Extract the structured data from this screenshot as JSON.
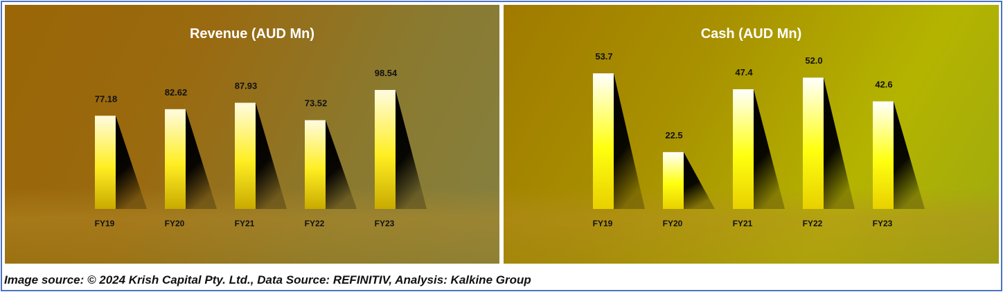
{
  "chart_data": [
    {
      "type": "bar",
      "title": "Revenue (AUD Mn)",
      "categories": [
        "FY19",
        "FY20",
        "FY21",
        "FY22",
        "FY23"
      ],
      "values": [
        77.18,
        82.62,
        87.93,
        73.52,
        98.54
      ],
      "value_labels": [
        "77.18",
        "82.62",
        "87.93",
        "73.52",
        "98.54"
      ],
      "ylim": [
        0,
        110
      ],
      "grid": false,
      "colors": {
        "bar_top": "#fffbe0",
        "bar_mid": "#ffee22",
        "bar_bottom": "#c8aa00",
        "shadow": "#000000",
        "background": "#9a6a10"
      }
    },
    {
      "type": "bar",
      "title": "Cash (AUD Mn)",
      "categories": [
        "FY19",
        "FY20",
        "FY21",
        "FY22",
        "FY23"
      ],
      "values": [
        53.7,
        22.5,
        47.4,
        52.0,
        42.6
      ],
      "value_labels": [
        "53.7",
        "22.5",
        "47.4",
        "52.0",
        "42.6"
      ],
      "ylim": [
        0,
        60
      ],
      "grid": false,
      "colors": {
        "bar_top": "#ffffff",
        "bar_mid": "#ffff10",
        "bar_bottom": "#e8d000",
        "shadow": "#000000",
        "background": "#b0b000"
      }
    }
  ],
  "caption": "Image source: © 2024 Krish Capital Pty. Ltd., Data Source: REFINITIV, Analysis: Kalkine Group"
}
